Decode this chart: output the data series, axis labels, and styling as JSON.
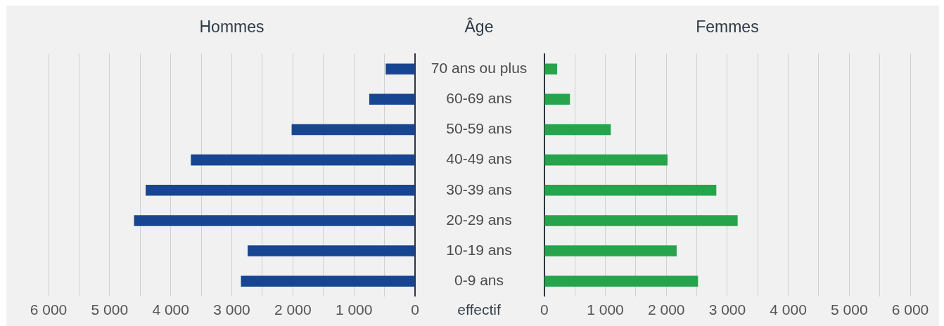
{
  "chart_data": [
    {
      "type": "bar",
      "orientation": "horizontal",
      "title": "Hommes",
      "ylabel": "Âge",
      "xlabel": "effectif",
      "categories": [
        "70 ans ou plus",
        "60-69 ans",
        "50-59 ans",
        "40-49 ans",
        "30-39 ans",
        "20-29 ans",
        "10-19 ans",
        "0-9 ans"
      ],
      "values": [
        480,
        750,
        2020,
        3670,
        4410,
        4600,
        2740,
        2850
      ],
      "color": "#184592",
      "xlim": [
        6000,
        0
      ],
      "xticks": [
        {
          "value": 6000,
          "label": "6 000"
        },
        {
          "value": 5500,
          "label": null
        },
        {
          "value": 5000,
          "label": "5 000"
        },
        {
          "value": 4500,
          "label": null
        },
        {
          "value": 4000,
          "label": "4 000"
        },
        {
          "value": 3500,
          "label": null
        },
        {
          "value": 3000,
          "label": "3 000"
        },
        {
          "value": 2500,
          "label": null
        },
        {
          "value": 2000,
          "label": "2 000"
        },
        {
          "value": 1500,
          "label": null
        },
        {
          "value": 1000,
          "label": "1 000"
        },
        {
          "value": 500,
          "label": null
        },
        0
      ],
      "grid": "x"
    },
    {
      "type": "bar",
      "orientation": "horizontal",
      "title": "Femmes",
      "categories": [
        null,
        null,
        null,
        null,
        null,
        null,
        null,
        null
      ],
      "values": [
        210,
        420,
        1090,
        2020,
        2820,
        3170,
        2170,
        2520
      ],
      "color": "#25a44c",
      "xlim": [
        0,
        6000
      ],
      "xticks": [
        0,
        {
          "value": 500,
          "label": null
        },
        {
          "value": 1000,
          "label": "1 000"
        },
        {
          "value": 1500,
          "label": null
        },
        {
          "value": 2000,
          "label": "2 000"
        },
        {
          "value": 2500,
          "label": null
        },
        {
          "value": 3000,
          "label": "3 000"
        },
        {
          "value": 3500,
          "label": null
        },
        {
          "value": 4000,
          "label": "4 000"
        },
        {
          "value": 4500,
          "label": null
        },
        {
          "value": 5000,
          "label": "5 000"
        },
        {
          "value": 5500,
          "label": null
        },
        {
          "value": 6000,
          "label": "6 000"
        }
      ],
      "grid": "x",
      "tick_labels": "x"
    }
  ]
}
